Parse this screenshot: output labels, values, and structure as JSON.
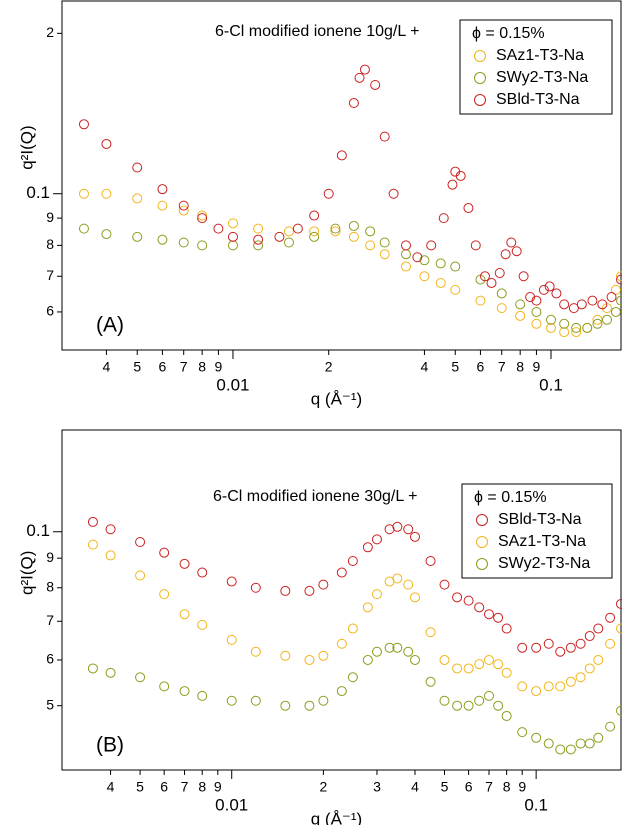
{
  "chart_data": [
    {
      "type": "scatter",
      "panel_label": "(A)",
      "annotation": "6-Cl modified ionene 10g/L +",
      "legend_title": "ϕ = 0.15%",
      "xlabel": "q (Å⁻¹)",
      "ylabel": "q²I(Q)",
      "xscale": "log",
      "yscale": "log",
      "xlim": [
        0.0029,
        0.166
      ],
      "ylim": [
        0.0509,
        0.23
      ],
      "xticks": [
        {
          "value": 0.004,
          "label": "4"
        },
        {
          "value": 0.005,
          "label": "5"
        },
        {
          "value": 0.006,
          "label": "6"
        },
        {
          "value": 0.007,
          "label": "7"
        },
        {
          "value": 0.008,
          "label": "8"
        },
        {
          "value": 0.009,
          "label": "9"
        },
        0.01,
        {
          "value": 0.02,
          "label": "2"
        },
        {
          "value": 0.04,
          "label": "4"
        },
        {
          "value": 0.05,
          "label": "5"
        },
        {
          "value": 0.06,
          "label": "6"
        },
        {
          "value": 0.07,
          "label": "7"
        },
        {
          "value": 0.08,
          "label": "8"
        },
        {
          "value": 0.09,
          "label": "9"
        },
        0.1
      ],
      "yticks": [
        {
          "value": 0.06,
          "label": "6"
        },
        {
          "value": 0.07,
          "label": "7"
        },
        {
          "value": 0.08,
          "label": "8"
        },
        {
          "value": 0.09,
          "label": "9"
        },
        0.1,
        {
          "value": 0.2,
          "label": "2"
        }
      ],
      "series": [
        {
          "name": "SAz1-T3-Na",
          "color": "#f2b51a",
          "x": [
            0.0034,
            0.004,
            0.005,
            0.006,
            0.007,
            0.008,
            0.01,
            0.012,
            0.015,
            0.018,
            0.021,
            0.024,
            0.027,
            0.03,
            0.035,
            0.04,
            0.045,
            0.05,
            0.06,
            0.07,
            0.08,
            0.09,
            0.1,
            0.11,
            0.12,
            0.13,
            0.14,
            0.15,
            0.16,
            0.166
          ],
          "values": [
            0.1,
            0.1,
            0.098,
            0.095,
            0.093,
            0.091,
            0.088,
            0.086,
            0.085,
            0.085,
            0.085,
            0.083,
            0.08,
            0.077,
            0.073,
            0.07,
            0.068,
            0.066,
            0.063,
            0.061,
            0.059,
            0.057,
            0.056,
            0.055,
            0.055,
            0.056,
            0.058,
            0.061,
            0.066,
            0.07
          ]
        },
        {
          "name": "SWy2-T3-Na",
          "color": "#8c9c1e",
          "x": [
            0.0034,
            0.004,
            0.005,
            0.006,
            0.007,
            0.008,
            0.01,
            0.012,
            0.015,
            0.018,
            0.021,
            0.024,
            0.027,
            0.03,
            0.035,
            0.04,
            0.045,
            0.05,
            0.06,
            0.07,
            0.08,
            0.09,
            0.1,
            0.11,
            0.12,
            0.13,
            0.14,
            0.15,
            0.16,
            0.166
          ],
          "values": [
            0.086,
            0.084,
            0.083,
            0.082,
            0.081,
            0.08,
            0.08,
            0.08,
            0.081,
            0.083,
            0.086,
            0.087,
            0.085,
            0.081,
            0.077,
            0.075,
            0.074,
            0.073,
            0.069,
            0.065,
            0.062,
            0.06,
            0.058,
            0.057,
            0.056,
            0.056,
            0.057,
            0.058,
            0.06,
            0.063
          ]
        },
        {
          "name": "SBld-T3-Na",
          "color": "#cc2020",
          "x": [
            0.0034,
            0.004,
            0.005,
            0.006,
            0.007,
            0.008,
            0.009,
            0.01,
            0.012,
            0.014,
            0.016,
            0.018,
            0.02,
            0.022,
            0.024,
            0.025,
            0.026,
            0.028,
            0.03,
            0.032,
            0.035,
            0.038,
            0.042,
            0.046,
            0.049,
            0.05,
            0.052,
            0.055,
            0.058,
            0.062,
            0.065,
            0.069,
            0.072,
            0.075,
            0.078,
            0.082,
            0.086,
            0.09,
            0.095,
            0.099,
            0.104,
            0.11,
            0.118,
            0.125,
            0.135,
            0.145,
            0.155,
            0.166
          ],
          "values": [
            0.135,
            0.124,
            0.112,
            0.102,
            0.095,
            0.09,
            0.086,
            0.083,
            0.082,
            0.083,
            0.086,
            0.091,
            0.1,
            0.118,
            0.148,
            0.165,
            0.171,
            0.16,
            0.128,
            0.1,
            0.08,
            0.076,
            0.08,
            0.09,
            0.104,
            0.11,
            0.108,
            0.094,
            0.08,
            0.07,
            0.068,
            0.071,
            0.077,
            0.081,
            0.078,
            0.07,
            0.064,
            0.063,
            0.066,
            0.067,
            0.065,
            0.062,
            0.061,
            0.062,
            0.063,
            0.062,
            0.064,
            0.069
          ]
        }
      ]
    },
    {
      "type": "scatter",
      "panel_label": "(B)",
      "annotation": "6-Cl modified ionene 30g/L +",
      "legend_title": "ϕ = 0.15%",
      "xlabel": "q (Å⁻¹)",
      "ylabel": "q²I(Q)",
      "xscale": "log",
      "yscale": "log",
      "xlim": [
        0.00277,
        0.19
      ],
      "ylim": [
        0.0387,
        0.15
      ],
      "xticks": [
        {
          "value": 0.004,
          "label": "4"
        },
        {
          "value": 0.005,
          "label": "5"
        },
        {
          "value": 0.006,
          "label": "6"
        },
        {
          "value": 0.007,
          "label": "7"
        },
        {
          "value": 0.008,
          "label": "8"
        },
        {
          "value": 0.009,
          "label": "9"
        },
        0.01,
        {
          "value": 0.02,
          "label": "2"
        },
        {
          "value": 0.03,
          "label": "3"
        },
        {
          "value": 0.04,
          "label": "4"
        },
        {
          "value": 0.05,
          "label": "5"
        },
        {
          "value": 0.06,
          "label": "6"
        },
        {
          "value": 0.07,
          "label": "7"
        },
        {
          "value": 0.08,
          "label": "8"
        },
        {
          "value": 0.09,
          "label": "9"
        },
        0.1
      ],
      "yticks": [
        {
          "value": 0.05,
          "label": "5"
        },
        {
          "value": 0.06,
          "label": "6"
        },
        {
          "value": 0.07,
          "label": "7"
        },
        {
          "value": 0.08,
          "label": "8"
        },
        {
          "value": 0.09,
          "label": "9"
        },
        0.1
      ],
      "x": [
        0.0035,
        0.004,
        0.005,
        0.006,
        0.007,
        0.008,
        0.01,
        0.012,
        0.015,
        0.018,
        0.02,
        0.023,
        0.025,
        0.028,
        0.03,
        0.033,
        0.035,
        0.038,
        0.04,
        0.045,
        0.05,
        0.055,
        0.06,
        0.065,
        0.07,
        0.075,
        0.08,
        0.09,
        0.1,
        0.11,
        0.12,
        0.13,
        0.14,
        0.15,
        0.16,
        0.175,
        0.19
      ],
      "series": [
        {
          "name": "SBld-T3-Na",
          "color": "#cc2020",
          "values": [
            0.104,
            0.101,
            0.096,
            0.092,
            0.088,
            0.085,
            0.082,
            0.08,
            0.079,
            0.079,
            0.081,
            0.085,
            0.089,
            0.094,
            0.097,
            0.101,
            0.102,
            0.101,
            0.098,
            0.089,
            0.081,
            0.077,
            0.076,
            0.074,
            0.072,
            0.071,
            0.068,
            0.063,
            0.063,
            0.064,
            0.062,
            0.063,
            0.064,
            0.066,
            0.068,
            0.071,
            0.075
          ]
        },
        {
          "name": "SAz1-T3-Na",
          "color": "#f2b51a",
          "values": [
            0.095,
            0.091,
            0.084,
            0.078,
            0.072,
            0.069,
            0.065,
            0.062,
            0.061,
            0.06,
            0.061,
            0.064,
            0.068,
            0.074,
            0.078,
            0.082,
            0.083,
            0.081,
            0.077,
            0.067,
            0.06,
            0.058,
            0.058,
            0.059,
            0.06,
            0.059,
            0.057,
            0.054,
            0.053,
            0.054,
            0.054,
            0.055,
            0.056,
            0.058,
            0.06,
            0.064,
            0.068
          ]
        },
        {
          "name": "SWy2-T3-Na",
          "color": "#8c9c1e",
          "values": [
            0.058,
            0.057,
            0.056,
            0.054,
            0.053,
            0.052,
            0.051,
            0.051,
            0.05,
            0.05,
            0.051,
            0.053,
            0.056,
            0.06,
            0.062,
            0.063,
            0.063,
            0.062,
            0.06,
            0.055,
            0.051,
            0.05,
            0.05,
            0.051,
            0.052,
            0.05,
            0.048,
            0.045,
            0.044,
            0.043,
            0.042,
            0.042,
            0.043,
            0.043,
            0.044,
            0.046,
            0.049
          ]
        }
      ]
    }
  ]
}
